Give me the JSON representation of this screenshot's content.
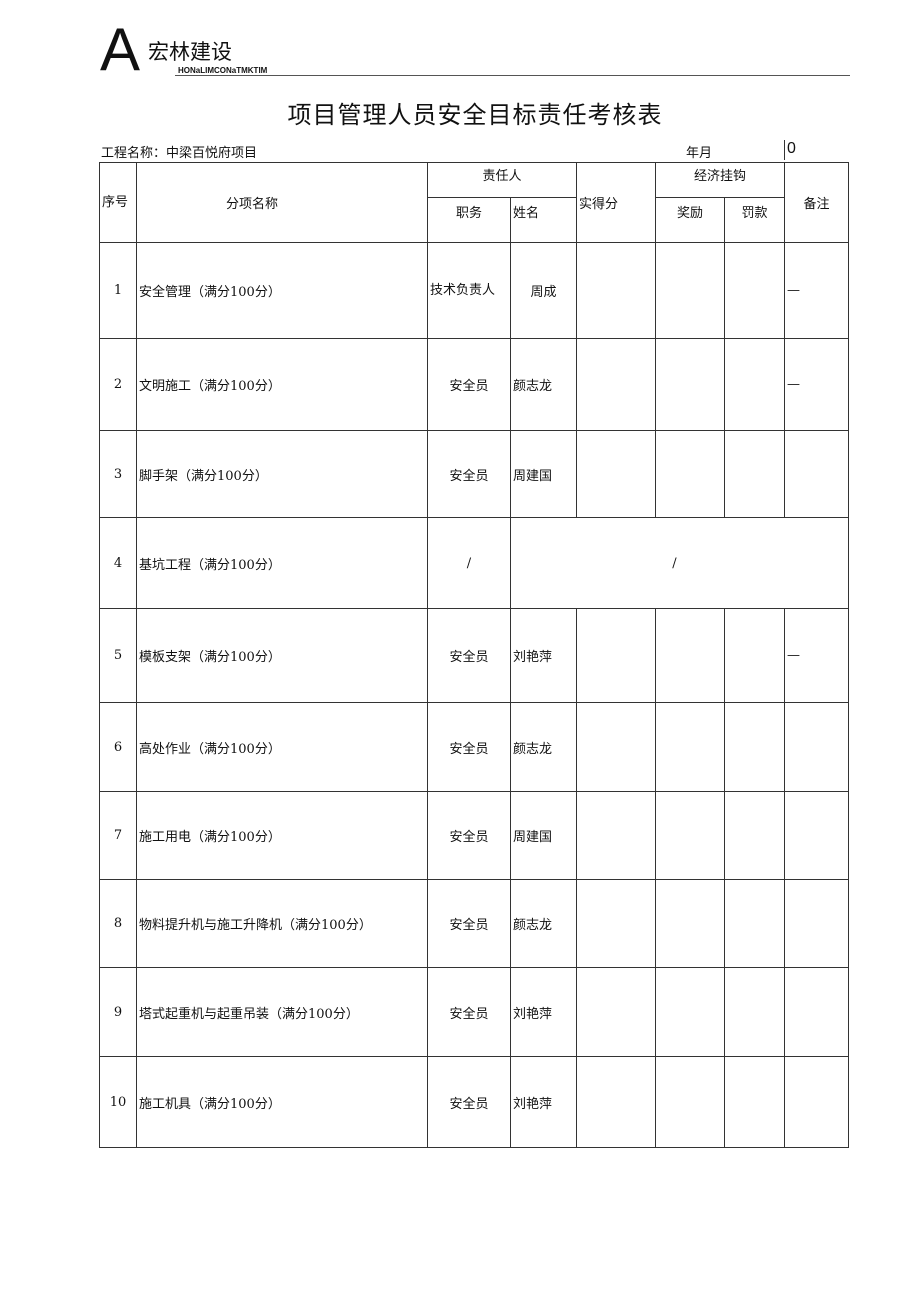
{
  "logo": {
    "letter": "A",
    "name": "宏林建设",
    "subtitle": "HONaLIMCONaTMKTIM"
  },
  "title": "项目管理人员安全目标责任考核表",
  "project_label": "工程名称：中梁百悦府项目",
  "year_month": "年月",
  "corner_value": "0",
  "headers": {
    "seq": "序号",
    "item": "分项名称",
    "responsible": "责任人",
    "position": "职务",
    "name": "姓名",
    "score": "实得分",
    "economic": "经济挂钩",
    "reward": "奖励",
    "penalty": "罚款",
    "remark": "备注"
  },
  "rows": [
    {
      "no": "1",
      "item": "安全管理（满分100分）",
      "position": "技术负责人",
      "name": "周成",
      "remark": "—"
    },
    {
      "no": "2",
      "item": "文明施工（满分100分）",
      "position": "安全员",
      "name": "颜志龙",
      "remark": "—"
    },
    {
      "no": "3",
      "item": "脚手架（满分100分）",
      "position": "安全员",
      "name": "周建国",
      "remark": ""
    },
    {
      "no": "4",
      "item": "基坑工程（满分100分）",
      "position": "/",
      "name": "/",
      "remark": ""
    },
    {
      "no": "5",
      "item": "模板支架（满分100分）",
      "position": "安全员",
      "name": "刘艳萍",
      "remark": "—"
    },
    {
      "no": "6",
      "item": "高处作业（满分100分）",
      "position": "安全员",
      "name": "颜志龙",
      "remark": ""
    },
    {
      "no": "7",
      "item": "施工用电（满分100分）",
      "position": "安全员",
      "name": "周建国",
      "remark": ""
    },
    {
      "no": "8",
      "item": "物料提升机与施工升降机（满分100分）",
      "position": "安全员",
      "name": "颜志龙",
      "remark": ""
    },
    {
      "no": "9",
      "item": "塔式起重机与起重吊装（满分100分）",
      "position": "安全员",
      "name": "刘艳萍",
      "remark": ""
    },
    {
      "no": "10",
      "item": "施工机具（满分100分）",
      "position": "安全员",
      "name": "刘艳萍",
      "remark": ""
    }
  ]
}
